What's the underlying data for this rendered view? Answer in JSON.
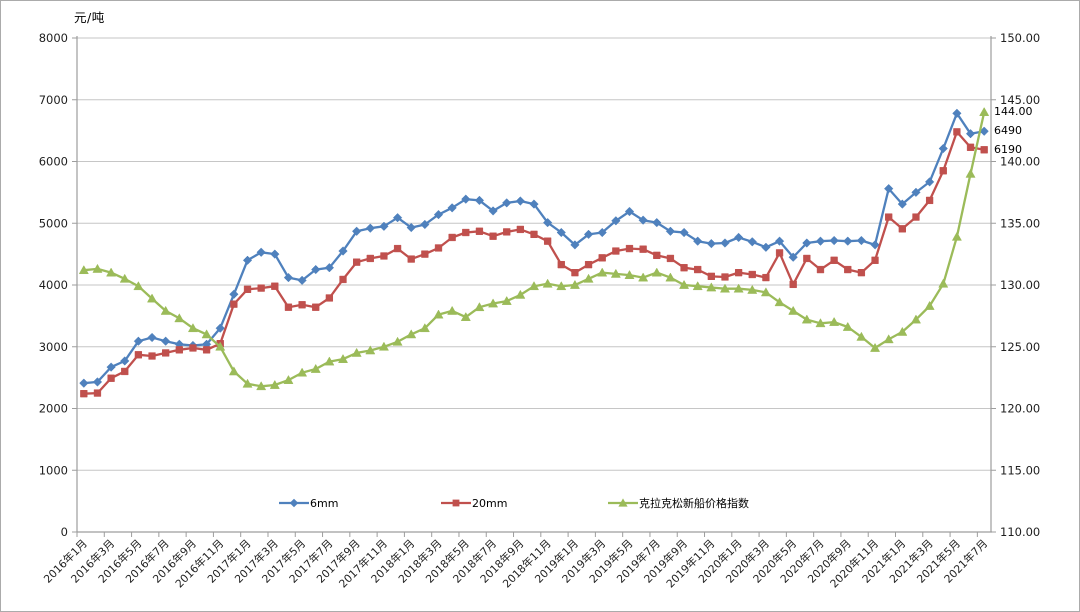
{
  "chart": {
    "colors": {
      "series_6mm": "#4F81BD",
      "series_20mm": "#C0504D",
      "series_index": "#9BBB59",
      "gridline": "#c6c6c6",
      "axis_line": "#9d9d9d",
      "tick_text": "#1f1f1f",
      "background": "#ffffff"
    }
  },
  "chart_data": {
    "type": "line",
    "title": "",
    "unit_label": "元/吨",
    "left_axis": {
      "min": 0,
      "max": 8000,
      "step": 1000
    },
    "right_axis": {
      "min": 110,
      "max": 150,
      "step": 5,
      "decimals": 2
    },
    "x_tick_step": 2,
    "legend_position": "bottom-inside",
    "grid": "horizontal",
    "categories": [
      "2016年1月",
      "2016年2月",
      "2016年3月",
      "2016年4月",
      "2016年5月",
      "2016年6月",
      "2016年7月",
      "2016年8月",
      "2016年9月",
      "2016年10月",
      "2016年11月",
      "2016年12月",
      "2017年1月",
      "2017年2月",
      "2017年3月",
      "2017年4月",
      "2017年5月",
      "2017年6月",
      "2017年7月",
      "2017年8月",
      "2017年9月",
      "2017年10月",
      "2017年11月",
      "2017年12月",
      "2018年1月",
      "2018年2月",
      "2018年3月",
      "2018年4月",
      "2018年5月",
      "2018年6月",
      "2018年7月",
      "2018年8月",
      "2018年9月",
      "2018年10月",
      "2018年11月",
      "2018年12月",
      "2019年1月",
      "2019年2月",
      "2019年3月",
      "2019年4月",
      "2019年5月",
      "2019年6月",
      "2019年7月",
      "2019年8月",
      "2019年9月",
      "2019年10月",
      "2019年11月",
      "2019年12月",
      "2020年1月",
      "2020年2月",
      "2020年3月",
      "2020年4月",
      "2020年5月",
      "2020年6月",
      "2020年7月",
      "2020年8月",
      "2020年9月",
      "2020年10月",
      "2020年11月",
      "2020年12月",
      "2021年1月",
      "2021年2月",
      "2021年3月",
      "2021年4月",
      "2021年5月",
      "2021年6月",
      "2021年7月"
    ],
    "series": [
      {
        "name": "6mm",
        "axis": "left",
        "color": "#4F81BD",
        "marker": "diamond",
        "end_label": "6490",
        "values": [
          2410,
          2430,
          2670,
          2770,
          3090,
          3150,
          3090,
          3040,
          3020,
          3040,
          3300,
          3850,
          4400,
          4530,
          4500,
          4120,
          4075,
          4250,
          4280,
          4550,
          4870,
          4920,
          4950,
          5090,
          4930,
          4980,
          5140,
          5250,
          5390,
          5370,
          5200,
          5330,
          5360,
          5310,
          5010,
          4850,
          4650,
          4820,
          4850,
          5040,
          5190,
          5050,
          5010,
          4870,
          4850,
          4710,
          4670,
          4680,
          4770,
          4700,
          4610,
          4710,
          4450,
          4680,
          4710,
          4720,
          4710,
          4720,
          4650,
          5560,
          5310,
          5500,
          5670,
          6210,
          6780,
          6450,
          6490
        ]
      },
      {
        "name": "20mm",
        "axis": "left",
        "color": "#C0504D",
        "marker": "square",
        "end_label": "6190",
        "values": [
          2240,
          2250,
          2490,
          2600,
          2870,
          2850,
          2900,
          2950,
          2980,
          2950,
          3050,
          3690,
          3930,
          3950,
          3980,
          3640,
          3680,
          3640,
          3790,
          4090,
          4370,
          4430,
          4470,
          4590,
          4420,
          4500,
          4600,
          4770,
          4850,
          4870,
          4790,
          4860,
          4900,
          4820,
          4710,
          4330,
          4200,
          4330,
          4440,
          4550,
          4590,
          4580,
          4480,
          4430,
          4280,
          4250,
          4140,
          4130,
          4200,
          4170,
          4120,
          4520,
          4010,
          4430,
          4250,
          4400,
          4250,
          4200,
          4400,
          5100,
          4910,
          5100,
          5370,
          5850,
          6480,
          6230,
          6190
        ]
      },
      {
        "name": "克拉克松新船价格指数",
        "axis": "right",
        "color": "#9BBB59",
        "marker": "triangle",
        "end_label": "144.00",
        "values": [
          131.2,
          131.3,
          131.0,
          130.5,
          129.9,
          128.9,
          127.9,
          127.3,
          126.5,
          126.0,
          125.0,
          123.0,
          122.0,
          121.8,
          121.9,
          122.3,
          122.9,
          123.2,
          123.8,
          124.0,
          124.5,
          124.7,
          125.0,
          125.4,
          126.0,
          126.5,
          127.6,
          127.9,
          127.4,
          128.2,
          128.5,
          128.7,
          129.2,
          129.9,
          130.1,
          129.9,
          130.0,
          130.5,
          131.0,
          130.9,
          130.8,
          130.6,
          131.0,
          130.6,
          130.0,
          129.9,
          129.8,
          129.7,
          129.7,
          129.6,
          129.4,
          128.6,
          127.9,
          127.2,
          126.9,
          127.0,
          126.6,
          125.8,
          124.9,
          125.6,
          126.2,
          127.2,
          128.3,
          130.1,
          133.9,
          139.0,
          144.0
        ]
      }
    ]
  }
}
